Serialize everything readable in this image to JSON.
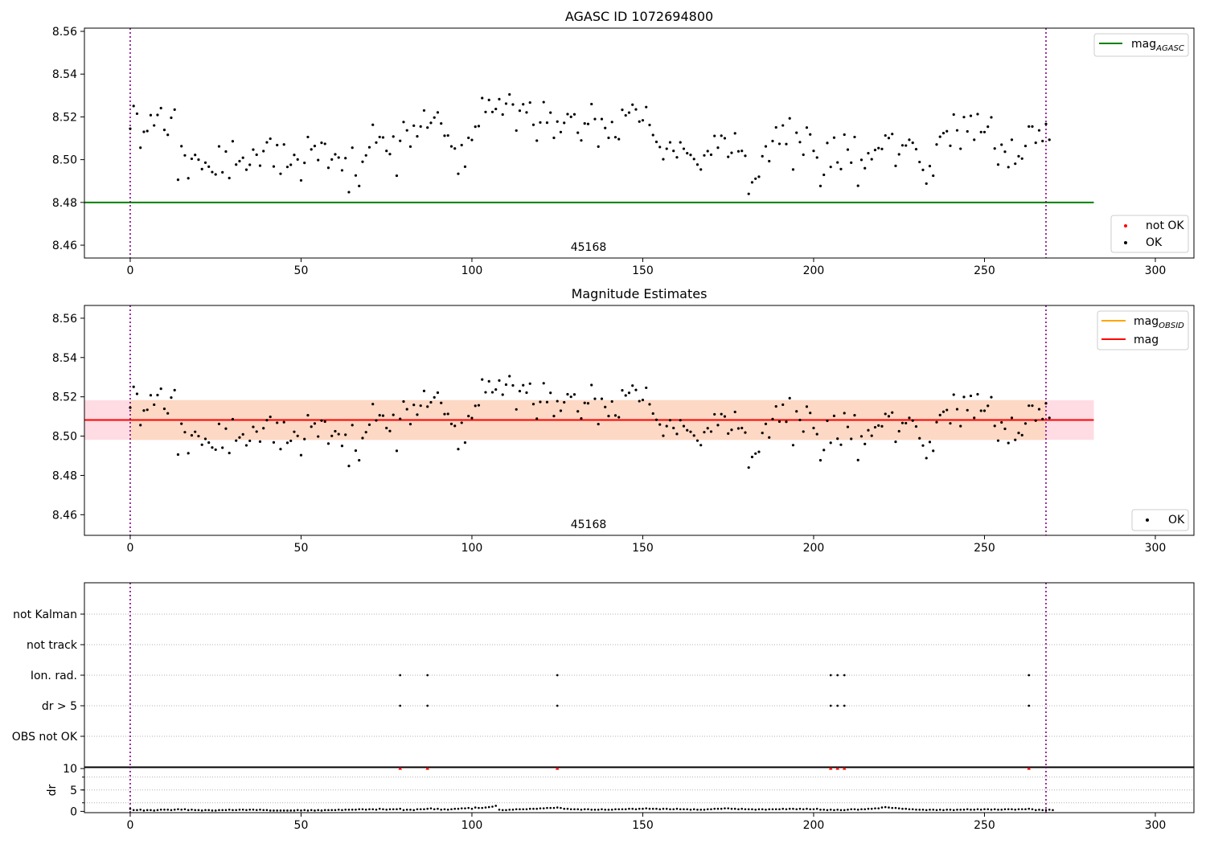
{
  "figure": {
    "top_title": "AGASC ID 1072694800",
    "middle_title": "Magnitude Estimates",
    "obsid_note": "45168"
  },
  "chart_data": [
    {
      "type": "scatter",
      "title": "AGASC ID 1072694800",
      "xlim": [
        -13.4,
        311.3
      ],
      "ylim": [
        8.454,
        8.5615
      ],
      "xticks": [
        0,
        50,
        100,
        150,
        200,
        250,
        300
      ],
      "yticks": [
        "8.46",
        "8.48",
        "8.50",
        "8.52",
        "8.54",
        "8.56"
      ],
      "vlines": [
        0,
        268
      ],
      "hline": {
        "name": "mag_AGASC",
        "y": 8.48,
        "x": [
          -13.4,
          282
        ]
      },
      "annotation": {
        "text": "45168",
        "x": 134,
        "y": 8.456
      },
      "legend_top": [
        {
          "label": "mag",
          "sub": "AGASC",
          "color": "#008000"
        }
      ],
      "legend_bottom": [
        {
          "label": "not OK",
          "color": "#ff0000"
        },
        {
          "label": "OK",
          "color": "#000000"
        }
      ],
      "series": [
        {
          "name": "OK",
          "x_start": 0,
          "x_step": 1,
          "values": [
            8.5145,
            8.5251,
            8.5215,
            8.5056,
            8.513,
            8.5134,
            8.5208,
            8.516,
            8.5209,
            8.5241,
            8.5139,
            8.5116,
            8.5196,
            8.5234,
            8.4906,
            8.5063,
            8.502,
            8.4913,
            8.5004,
            8.5022,
            8.5,
            8.4956,
            8.4986,
            8.4967,
            8.4942,
            8.4931,
            8.5062,
            8.4941,
            8.5038,
            8.4914,
            8.5086,
            8.4977,
            8.4993,
            8.5009,
            8.4953,
            8.4976,
            8.5047,
            8.5023,
            8.4972,
            8.504,
            8.5081,
            8.5098,
            8.4968,
            8.5068,
            8.4934,
            8.5071,
            8.4966,
            8.4976,
            8.5022,
            8.5001,
            8.4903,
            8.4985,
            8.5106,
            8.5048,
            8.5064,
            8.4998,
            8.5079,
            8.5074,
            8.4962,
            8.5001,
            8.5025,
            8.501,
            8.495,
            8.5007,
            8.4848,
            8.5056,
            8.4926,
            8.4877,
            8.499,
            8.502,
            8.5058,
            8.5163,
            8.508,
            8.5106,
            8.5104,
            8.5041,
            8.5026,
            8.5108,
            8.4925,
            8.5088,
            8.5176,
            8.5137,
            8.5061,
            8.5159,
            8.5109,
            8.5155,
            8.523,
            8.515,
            8.5172,
            8.5197,
            8.5221,
            8.5169,
            8.5112,
            8.5113,
            8.5062,
            8.5052,
            8.4934,
            8.5068,
            8.4967,
            8.5102,
            8.5092,
            8.5154,
            8.5157,
            8.5288,
            8.5223,
            8.5279,
            8.5223,
            8.5237,
            8.5283,
            8.5211,
            8.5262,
            8.5305,
            8.5258,
            8.5136,
            8.5229,
            8.5259,
            8.5221,
            8.5267,
            8.5163,
            8.5089,
            8.5174,
            8.5269,
            8.5173,
            8.522,
            8.5102,
            8.5178,
            8.5129,
            8.5172,
            8.5213,
            8.52,
            8.5212,
            8.5126,
            8.509,
            8.5169,
            8.5167,
            8.526,
            8.519,
            8.5061,
            8.519,
            8.5148,
            8.5102,
            8.5176,
            8.5105,
            8.5096,
            8.5233,
            8.5207,
            8.522,
            8.5257,
            8.5235,
            8.5178,
            8.5184,
            8.5246,
            8.5162,
            8.5115,
            8.5083,
            8.5059,
            8.5002,
            8.5051,
            8.5081,
            8.5041,
            8.5011,
            8.5081,
            8.5051,
            8.503,
            8.5022,
            8.5003,
            8.4977,
            8.4954,
            8.502,
            8.504,
            8.5023,
            8.5111,
            8.5056,
            8.5112,
            8.51,
            8.5013,
            8.5032,
            8.5123,
            8.5039,
            8.5041,
            8.5018,
            8.484,
            8.4894,
            8.4911,
            8.492,
            8.5016,
            8.5062,
            8.4993,
            8.5087,
            8.5151,
            8.5074,
            8.516,
            8.5073,
            8.5193,
            8.4954,
            8.5126,
            8.5082,
            8.5023,
            8.515,
            8.5118,
            8.5041,
            8.501,
            8.4877,
            8.4929,
            8.5078,
            8.4966,
            8.5103,
            8.4987,
            8.4956,
            8.5117,
            8.5047,
            8.4986,
            8.5106,
            8.4878,
            8.4999,
            8.496,
            8.503,
            8.5002,
            8.5045,
            8.5054,
            8.505,
            8.5113,
            8.5101,
            8.512,
            8.4971,
            8.5025,
            8.5067,
            8.5066,
            8.5093,
            8.5079,
            8.5049,
            8.4989,
            8.4952,
            8.4888,
            8.497,
            8.4925,
            8.5071,
            8.5107,
            8.5124,
            8.5133,
            8.5065,
            8.5211,
            8.5137,
            8.5051,
            8.5199,
            8.5132,
            8.5205,
            8.5093,
            8.5213,
            8.5129,
            8.5129,
            8.5154,
            8.5198,
            8.5052,
            8.4977,
            8.507,
            8.5037,
            8.4965,
            8.5093,
            8.4981,
            8.5016,
            8.5005,
            8.5064,
            8.5155,
            8.5155,
            8.5079,
            8.5137,
            8.5087,
            8.5167,
            8.5093
          ]
        }
      ]
    },
    {
      "type": "scatter",
      "title": "Magnitude Estimates",
      "xlim": [
        -13.4,
        311.3
      ],
      "ylim": [
        8.4495,
        8.5665
      ],
      "xticks": [
        0,
        50,
        100,
        150,
        200,
        250,
        300
      ],
      "yticks": [
        "8.46",
        "8.48",
        "8.50",
        "8.52",
        "8.54",
        "8.56"
      ],
      "vlines": [
        0,
        268
      ],
      "band_outer": {
        "y": [
          8.4981,
          8.5183
        ],
        "x": [
          -13.4,
          282
        ],
        "color": "#ffdce4"
      },
      "band_inner": {
        "y": [
          8.4981,
          8.5183
        ],
        "x": [
          0,
          268
        ],
        "color": "#fdd8c4"
      },
      "lines": [
        {
          "name": "mag_OBSID",
          "y": 8.5082,
          "x": [
            0,
            268
          ],
          "color": "#ff8a3d"
        },
        {
          "name": "mag",
          "y": 8.5082,
          "x": [
            -13.4,
            282
          ],
          "color": "#ff0000"
        }
      ],
      "annotation": {
        "text": "45168",
        "x": 134,
        "y": 8.4515
      },
      "legend_top": [
        {
          "label": "mag",
          "sub": "OBSID",
          "color": "#ffa500"
        },
        {
          "label": "mag",
          "sub": "",
          "color": "#ff0000"
        }
      ],
      "legend_bottom": [
        {
          "label": "OK",
          "color": "#000000"
        }
      ],
      "series": [
        {
          "name": "OK",
          "x_start": 0,
          "x_step": 1,
          "values_ref": "same as panel 1"
        }
      ]
    },
    {
      "type": "scatter",
      "title": "",
      "xlim": [
        -13.4,
        311.3
      ],
      "categories": [
        "not Kalman",
        "not track",
        "Ion. rad.",
        "dr > 5",
        "OBS not OK"
      ],
      "flags": {
        "Ion. rad.": [
          79,
          87,
          125,
          205,
          207,
          209,
          263
        ],
        "dr > 5": [
          79,
          87,
          125,
          205,
          207,
          209,
          263
        ]
      },
      "vlines": [
        0,
        268
      ]
    },
    {
      "type": "scatter",
      "title": "",
      "ylabel": "dr",
      "xlim": [
        -13.4,
        311.3
      ],
      "ylim": [
        -0.3,
        10.4
      ],
      "xticks": [
        0,
        50,
        100,
        150,
        200,
        250,
        300
      ],
      "yticks": [
        0,
        5,
        10
      ],
      "gridlines_y": [
        2,
        5,
        8
      ],
      "vlines": [
        0,
        268
      ],
      "clipped_points": {
        "x": [
          79,
          87,
          125,
          205,
          207,
          209,
          263
        ],
        "y": 10,
        "color": "#ff0000"
      },
      "dr_values": [
        0.6,
        0.3,
        0.3,
        0.4,
        0.2,
        0.3,
        0.3,
        0.2,
        0.3,
        0.4,
        0.4,
        0.4,
        0.3,
        0.4,
        0.5,
        0.4,
        0.5,
        0.3,
        0.4,
        0.3,
        0.3,
        0.2,
        0.3,
        0.3,
        0.2,
        0.2,
        0.3,
        0.3,
        0.3,
        0.4,
        0.3,
        0.3,
        0.4,
        0.4,
        0.3,
        0.4,
        0.4,
        0.3,
        0.4,
        0.3,
        0.3,
        0.2,
        0.2,
        0.2,
        0.2,
        0.2,
        0.2,
        0.2,
        0.2,
        0.3,
        0.2,
        0.3,
        0.2,
        0.3,
        0.2,
        0.3,
        0.2,
        0.3,
        0.3,
        0.3,
        0.3,
        0.4,
        0.3,
        0.4,
        0.4,
        0.4,
        0.4,
        0.5,
        0.5,
        0.4,
        0.5,
        0.5,
        0.4,
        0.6,
        0.5,
        0.4,
        0.5,
        0.5,
        0.5,
        0.6,
        0.3,
        0.4,
        0.4,
        0.3,
        0.5,
        0.5,
        0.5,
        0.6,
        0.7,
        0.5,
        0.6,
        0.4,
        0.5,
        0.4,
        0.5,
        0.6,
        0.6,
        0.7,
        0.7,
        0.8,
        0.6,
        0.9,
        0.8,
        0.8,
        0.9,
        1.0,
        1.1,
        1.3,
        0.4,
        0.3,
        0.3,
        0.4,
        0.4,
        0.5,
        0.5,
        0.5,
        0.5,
        0.6,
        0.6,
        0.6,
        0.7,
        0.7,
        0.8,
        0.8,
        0.8,
        0.9,
        0.8,
        0.6,
        0.6,
        0.5,
        0.5,
        0.5,
        0.4,
        0.5,
        0.5,
        0.4,
        0.4,
        0.4,
        0.5,
        0.4,
        0.4,
        0.4,
        0.5,
        0.5,
        0.5,
        0.5,
        0.6,
        0.6,
        0.5,
        0.6,
        0.6,
        0.7,
        0.6,
        0.6,
        0.6,
        0.5,
        0.6,
        0.6,
        0.5,
        0.5,
        0.6,
        0.5,
        0.5,
        0.5,
        0.4,
        0.5,
        0.4,
        0.4,
        0.4,
        0.5,
        0.5,
        0.6,
        0.6,
        0.6,
        0.7,
        0.7,
        0.6,
        0.6,
        0.5,
        0.6,
        0.5,
        0.5,
        0.5,
        0.4,
        0.5,
        0.5,
        0.4,
        0.5,
        0.5,
        0.5,
        0.5,
        0.6,
        0.5,
        0.6,
        0.6,
        0.5,
        0.6,
        0.5,
        0.6,
        0.5,
        0.5,
        0.6,
        0.4,
        0.4,
        0.3,
        0.4,
        0.3,
        0.4,
        0.3,
        0.3,
        0.4,
        0.5,
        0.5,
        0.4,
        0.5,
        0.5,
        0.6,
        0.6,
        0.7,
        0.7,
        0.9,
        1.0,
        0.9,
        0.8,
        0.8,
        0.7,
        0.6,
        0.6,
        0.5,
        0.5,
        0.4,
        0.4,
        0.4,
        0.3,
        0.4,
        0.4,
        0.3,
        0.4,
        0.3,
        0.4,
        0.4,
        0.3,
        0.4,
        0.4,
        0.4,
        0.5,
        0.4,
        0.4,
        0.5,
        0.4,
        0.5,
        0.5,
        0.4,
        0.5,
        0.4,
        0.4,
        0.5,
        0.5,
        0.5,
        0.4,
        0.5,
        0.5,
        0.5,
        0.6,
        0.5,
        0.3,
        0.4,
        0.3,
        0.3,
        0.4,
        0.3
      ]
    }
  ]
}
